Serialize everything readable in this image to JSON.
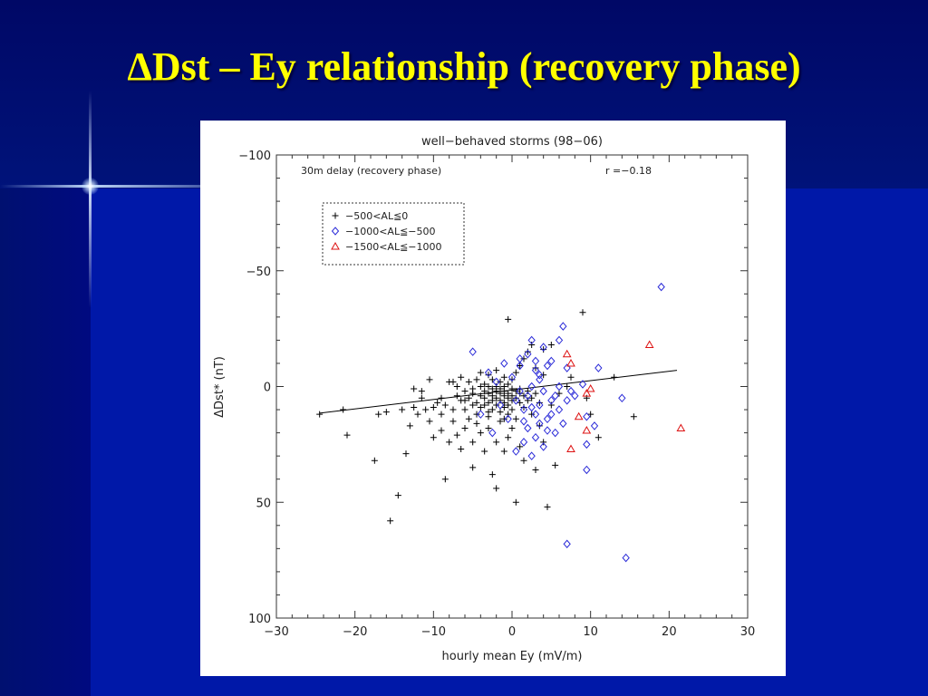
{
  "slide": {
    "title": "ΔDst – Ey relationship (recovery phase)"
  },
  "chart_data": {
    "type": "scatter",
    "title": "well−behaved storms (98−06)",
    "annotation_left": "30m delay (recovery phase)",
    "annotation_right": "r =−0.18",
    "xlabel": "hourly mean Ey (mV/m)",
    "ylabel": "ΔDst* (nT)",
    "xlim": [
      -30,
      30
    ],
    "ylim": [
      -100,
      100
    ],
    "y_inverted": true,
    "x_ticks": [
      "−30",
      "−20",
      "−10",
      "0",
      "10",
      "20",
      "30"
    ],
    "x_tick_values": [
      -30,
      -20,
      -10,
      0,
      10,
      20,
      30
    ],
    "y_ticks": [
      "−100",
      "−50",
      "0",
      "50",
      "100"
    ],
    "y_tick_values": [
      -100,
      -50,
      0,
      50,
      100
    ],
    "legend_placement": "top-left",
    "colors": {
      "black": "#000000",
      "blue": "#2a2ad8",
      "red": "#dd1111"
    },
    "fit_line": {
      "x": [
        -24.5,
        21
      ],
      "y": [
        11.5,
        -7
      ]
    },
    "series": [
      {
        "name": "−500<AL≦0",
        "marker": "plus",
        "color": "#000000",
        "points": [
          [
            -24.5,
            12
          ],
          [
            -21.5,
            10
          ],
          [
            -21,
            21
          ],
          [
            -17,
            12
          ],
          [
            -17.5,
            32
          ],
          [
            -16,
            11
          ],
          [
            -15.5,
            58
          ],
          [
            -14.5,
            47
          ],
          [
            -14,
            10
          ],
          [
            -13.5,
            29
          ],
          [
            -13,
            17
          ],
          [
            -12.5,
            9
          ],
          [
            -12.5,
            1
          ],
          [
            -12,
            12
          ],
          [
            -11.5,
            5
          ],
          [
            -11.5,
            2
          ],
          [
            -11,
            10
          ],
          [
            -10.5,
            15
          ],
          [
            -10.5,
            -3
          ],
          [
            -10,
            9
          ],
          [
            -10,
            22
          ],
          [
            -9.5,
            7
          ],
          [
            -9,
            5
          ],
          [
            -9,
            12
          ],
          [
            -9,
            19
          ],
          [
            -8.5,
            40
          ],
          [
            -8.5,
            8
          ],
          [
            -8,
            24
          ],
          [
            -8,
            -2
          ],
          [
            -7.5,
            10
          ],
          [
            -7.5,
            15
          ],
          [
            -7,
            4
          ],
          [
            -7,
            21
          ],
          [
            -7,
            0
          ],
          [
            -6.5,
            6
          ],
          [
            -6.5,
            27
          ],
          [
            -6.5,
            -4
          ],
          [
            -6,
            2
          ],
          [
            -6,
            10
          ],
          [
            -6,
            18
          ],
          [
            -5.5,
            5
          ],
          [
            -5.5,
            14
          ],
          [
            -5.5,
            -2
          ],
          [
            -5,
            3
          ],
          [
            -5,
            24
          ],
          [
            -5,
            1
          ],
          [
            -5,
            35
          ],
          [
            -4.5,
            7
          ],
          [
            -4.5,
            -3
          ],
          [
            -4.5,
            12
          ],
          [
            -4.5,
            16
          ],
          [
            -4,
            4
          ],
          [
            -4,
            0
          ],
          [
            -4,
            9
          ],
          [
            -4,
            20
          ],
          [
            -4,
            -6
          ],
          [
            -3.5,
            2
          ],
          [
            -3.5,
            8
          ],
          [
            -3.5,
            28
          ],
          [
            -3.5,
            -1
          ],
          [
            -3.5,
            5
          ],
          [
            -3,
            3
          ],
          [
            -3,
            13
          ],
          [
            -3,
            0
          ],
          [
            -3,
            7
          ],
          [
            -3,
            -5
          ],
          [
            -3,
            18
          ],
          [
            -2.5,
            1
          ],
          [
            -2.5,
            6
          ],
          [
            -2.5,
            10
          ],
          [
            -2.5,
            38
          ],
          [
            -2.5,
            -3
          ],
          [
            -2.5,
            4
          ],
          [
            -2,
            44
          ],
          [
            -2,
            2
          ],
          [
            -2,
            0
          ],
          [
            -2,
            8
          ],
          [
            -2,
            -7
          ],
          [
            -2,
            24
          ],
          [
            -2,
            5
          ],
          [
            -1.5,
            3
          ],
          [
            -1.5,
            -2
          ],
          [
            -1.5,
            11
          ],
          [
            -1.5,
            6
          ],
          [
            -1.5,
            15
          ],
          [
            -1.5,
            1
          ],
          [
            -1,
            4
          ],
          [
            -1,
            -4
          ],
          [
            -1,
            9
          ],
          [
            -1,
            0
          ],
          [
            -1,
            28
          ],
          [
            -1,
            7
          ],
          [
            -1,
            2
          ],
          [
            -0.5,
            -29
          ],
          [
            -0.5,
            5
          ],
          [
            -0.5,
            3
          ],
          [
            -0.5,
            -1
          ],
          [
            -0.5,
            12
          ],
          [
            -0.5,
            8
          ],
          [
            -0.5,
            22
          ],
          [
            0,
            1
          ],
          [
            0,
            6
          ],
          [
            0,
            -3
          ],
          [
            0,
            10
          ],
          [
            0,
            4
          ],
          [
            0,
            18
          ],
          [
            0.5,
            2
          ],
          [
            0.5,
            -6
          ],
          [
            0.5,
            5
          ],
          [
            0.5,
            50
          ],
          [
            0.5,
            14
          ],
          [
            1,
            3
          ],
          [
            1,
            -9
          ],
          [
            1,
            26
          ],
          [
            1,
            7
          ],
          [
            1,
            1
          ],
          [
            1.5,
            4
          ],
          [
            1.5,
            -12
          ],
          [
            1.5,
            9
          ],
          [
            1.5,
            32
          ],
          [
            2,
            2
          ],
          [
            2,
            -15
          ],
          [
            2,
            6
          ],
          [
            2.5,
            5
          ],
          [
            2.5,
            -18
          ],
          [
            2.5,
            12
          ],
          [
            3,
            3
          ],
          [
            3,
            -8
          ],
          [
            3,
            36
          ],
          [
            3.5,
            7
          ],
          [
            3.5,
            17
          ],
          [
            4,
            -5
          ],
          [
            4,
            24
          ],
          [
            4.5,
            52
          ],
          [
            5,
            8
          ],
          [
            5.5,
            34
          ],
          [
            6,
            3
          ],
          [
            7,
            0
          ],
          [
            7.5,
            -4
          ],
          [
            9,
            -32
          ],
          [
            9.5,
            5
          ],
          [
            10,
            12
          ],
          [
            11,
            22
          ],
          [
            13,
            -4
          ],
          [
            15.5,
            13
          ],
          [
            5,
            -18
          ],
          [
            4,
            -16
          ],
          [
            -6,
            6
          ],
          [
            -7.5,
            -2
          ],
          [
            -5,
            8
          ],
          [
            -3,
            11
          ],
          [
            -1,
            14
          ]
        ]
      },
      {
        "name": "−1000<AL≦−500",
        "marker": "diamond",
        "color": "#2a2ad8",
        "points": [
          [
            -5,
            -15
          ],
          [
            -4,
            12
          ],
          [
            -3,
            -6
          ],
          [
            -2.5,
            20
          ],
          [
            -2,
            -2
          ],
          [
            -1.5,
            8
          ],
          [
            -1,
            -10
          ],
          [
            -0.5,
            14
          ],
          [
            0,
            -4
          ],
          [
            0.5,
            6
          ],
          [
            0.5,
            28
          ],
          [
            1,
            -12
          ],
          [
            1,
            2
          ],
          [
            1.5,
            24
          ],
          [
            1.5,
            10
          ],
          [
            2,
            -14
          ],
          [
            2,
            4
          ],
          [
            2,
            18
          ],
          [
            2.5,
            -20
          ],
          [
            2.5,
            0
          ],
          [
            2.5,
            30
          ],
          [
            3,
            -7
          ],
          [
            3,
            12
          ],
          [
            3,
            22
          ],
          [
            3.5,
            -3
          ],
          [
            3.5,
            8
          ],
          [
            3.5,
            16
          ],
          [
            4,
            -17
          ],
          [
            4,
            2
          ],
          [
            4,
            26
          ],
          [
            4.5,
            -9
          ],
          [
            4.5,
            14
          ],
          [
            5,
            6
          ],
          [
            5,
            -11
          ],
          [
            5.5,
            4
          ],
          [
            5.5,
            20
          ],
          [
            6,
            -20
          ],
          [
            6,
            10
          ],
          [
            6,
            0
          ],
          [
            6.5,
            -26
          ],
          [
            6.5,
            16
          ],
          [
            7,
            -8
          ],
          [
            7,
            6
          ],
          [
            7.5,
            2
          ],
          [
            8,
            4
          ],
          [
            9,
            -1
          ],
          [
            9.5,
            13
          ],
          [
            9.5,
            25
          ],
          [
            9.5,
            36
          ],
          [
            10.5,
            17
          ],
          [
            11,
            -8
          ],
          [
            14,
            5
          ],
          [
            19,
            -43
          ],
          [
            7,
            68
          ],
          [
            14.5,
            74
          ],
          [
            1,
            -9
          ],
          [
            3,
            -11
          ],
          [
            4.5,
            19
          ],
          [
            2.5,
            9
          ],
          [
            5,
            12
          ],
          [
            3.5,
            -5
          ],
          [
            1.5,
            15
          ]
        ]
      },
      {
        "name": "−1500<AL≦−1000",
        "marker": "triangle",
        "color": "#dd1111",
        "points": [
          [
            7,
            -14
          ],
          [
            7.5,
            -10
          ],
          [
            8.5,
            13
          ],
          [
            9.5,
            19
          ],
          [
            9.5,
            3
          ],
          [
            10,
            1
          ],
          [
            7.5,
            27
          ],
          [
            17.5,
            -18
          ],
          [
            21.5,
            18
          ]
        ]
      }
    ]
  }
}
